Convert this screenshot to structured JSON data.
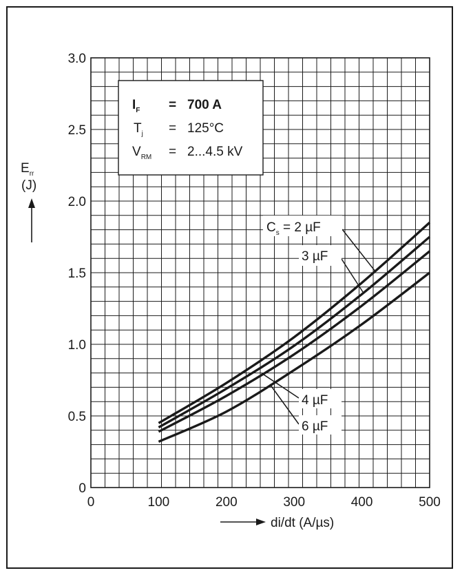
{
  "chart_data": {
    "type": "line",
    "xlabel": "di/dt (A/µs)",
    "ylabel_main": "E",
    "ylabel_sub": "rr",
    "ylabel_unit": "(J)",
    "xlim": [
      0,
      500
    ],
    "ylim": [
      0,
      3.0
    ],
    "x_ticks": [
      0,
      100,
      200,
      300,
      400,
      500
    ],
    "x_tick_labels": [
      "0",
      "100",
      "200",
      "300",
      "400",
      "500"
    ],
    "y_ticks": [
      0,
      0.5,
      1.0,
      1.5,
      2.0,
      2.5,
      3.0
    ],
    "y_tick_labels": [
      "0",
      "0.5",
      "1.0",
      "1.5",
      "2.0",
      "2.5",
      "3.0"
    ],
    "grid": true,
    "conditions": {
      "if": {
        "sym": "I",
        "sub": "F",
        "eq": "=",
        "val": "700 A"
      },
      "tj": {
        "sym": "T",
        "sub": "j",
        "eq": "=",
        "val": "125°C"
      },
      "vrm": {
        "sym": "V",
        "sub": "RM",
        "eq": "=",
        "val": "2...4.5 kV"
      }
    },
    "series": [
      {
        "name": "Cs = 2 µF",
        "x": [
          100,
          200,
          300,
          400,
          500
        ],
        "y": [
          0.45,
          0.73,
          1.05,
          1.43,
          1.85
        ]
      },
      {
        "name": "3 µF",
        "x": [
          100,
          200,
          300,
          400,
          500
        ],
        "y": [
          0.42,
          0.69,
          0.99,
          1.35,
          1.75
        ]
      },
      {
        "name": "4 µF",
        "x": [
          100,
          200,
          300,
          400,
          500
        ],
        "y": [
          0.39,
          0.64,
          0.93,
          1.27,
          1.65
        ]
      },
      {
        "name": "6 µF",
        "x": [
          100,
          200,
          300,
          400,
          500
        ],
        "y": [
          0.32,
          0.53,
          0.82,
          1.14,
          1.5
        ]
      }
    ],
    "curve_labels": {
      "c2": {
        "sym": "C",
        "sub": "s",
        "rest": " = 2 µF"
      },
      "c3": "3 µF",
      "c4": "4 µF",
      "c6": "6 µF"
    }
  }
}
